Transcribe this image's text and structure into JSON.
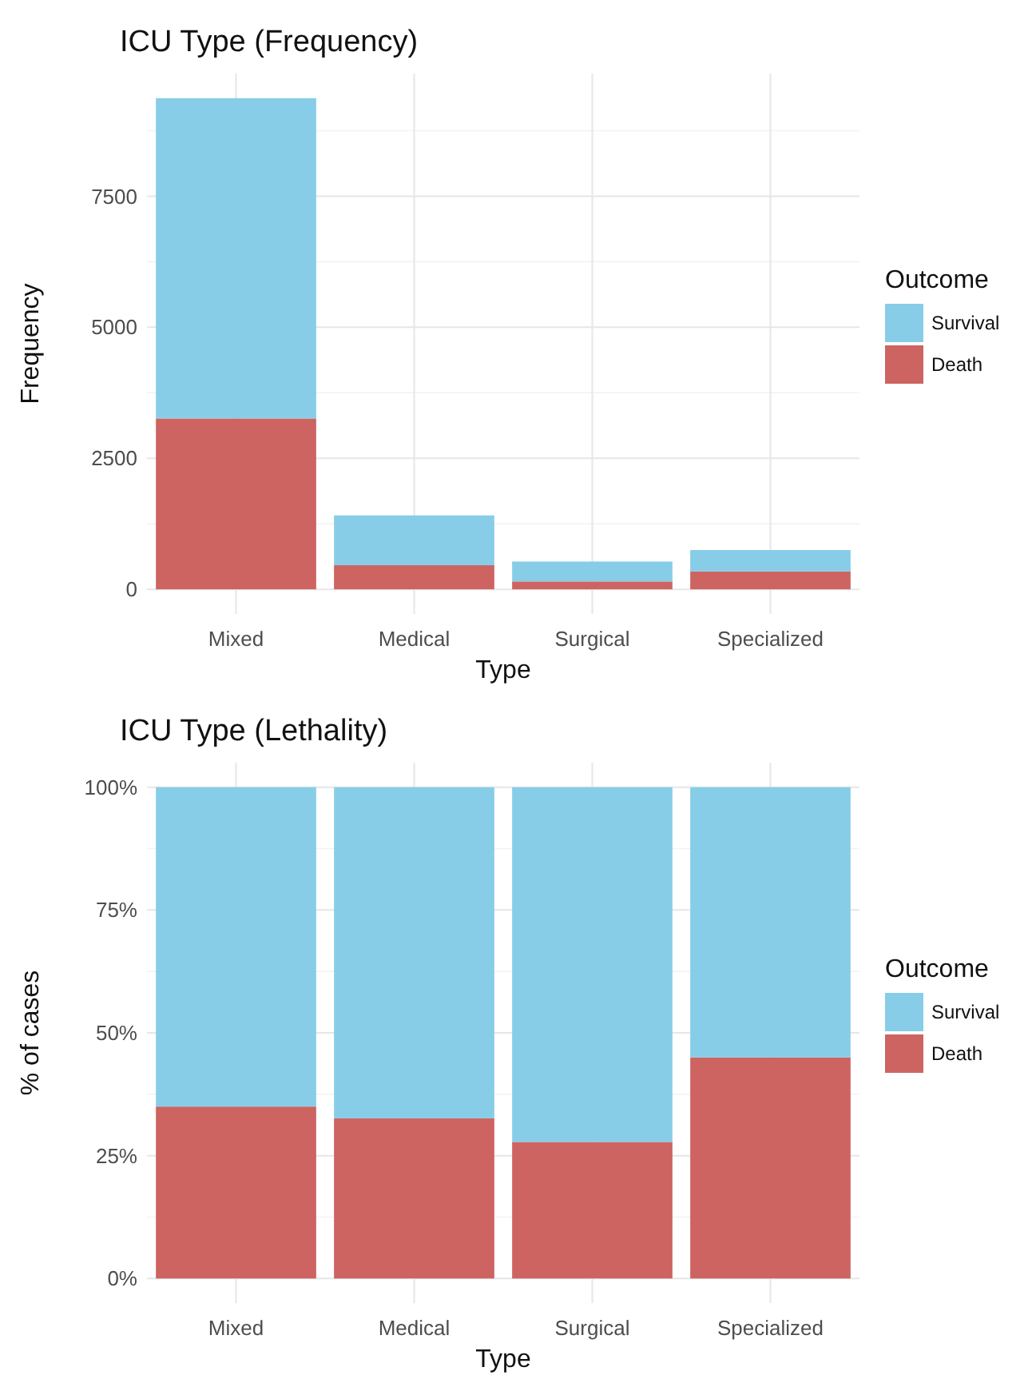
{
  "chart_data": [
    {
      "type": "bar",
      "title": "ICU Type (Frequency)",
      "xlabel": "Type",
      "ylabel": "Frequency",
      "legend_title": "Outcome",
      "categories": [
        "Mixed",
        "Medical",
        "Surgical",
        "Specialized"
      ],
      "stacked": true,
      "series": [
        {
          "name": "Death",
          "color": "#cd6462",
          "values": [
            3260,
            460,
            150,
            340
          ]
        },
        {
          "name": "Survival",
          "color": "#87cde8",
          "values": [
            6110,
            950,
            380,
            410
          ]
        }
      ],
      "ylim": [
        -470,
        9840
      ],
      "yticks": [
        0,
        2500,
        5000,
        7500
      ],
      "grid": true,
      "legend": "right"
    },
    {
      "type": "bar",
      "title": "ICU Type (Lethality)",
      "xlabel": "Type",
      "ylabel": "% of cases",
      "legend_title": "Outcome",
      "categories": [
        "Mixed",
        "Medical",
        "Surgical",
        "Specialized"
      ],
      "stacked": true,
      "series": [
        {
          "name": "Death",
          "color": "#cd6462",
          "values": [
            35.0,
            32.6,
            27.8,
            45.0
          ]
        },
        {
          "name": "Survival",
          "color": "#87cde8",
          "values": [
            65.0,
            67.4,
            72.2,
            55.0
          ]
        }
      ],
      "ylim": [
        -5,
        105
      ],
      "yticks": [
        {
          "value": 0,
          "label": "0%"
        },
        {
          "value": 25,
          "label": "25%"
        },
        {
          "value": 50,
          "label": "50%"
        },
        {
          "value": 75,
          "label": "75%"
        },
        {
          "value": 100,
          "label": "100%"
        }
      ],
      "grid": true,
      "legend": "right"
    }
  ]
}
